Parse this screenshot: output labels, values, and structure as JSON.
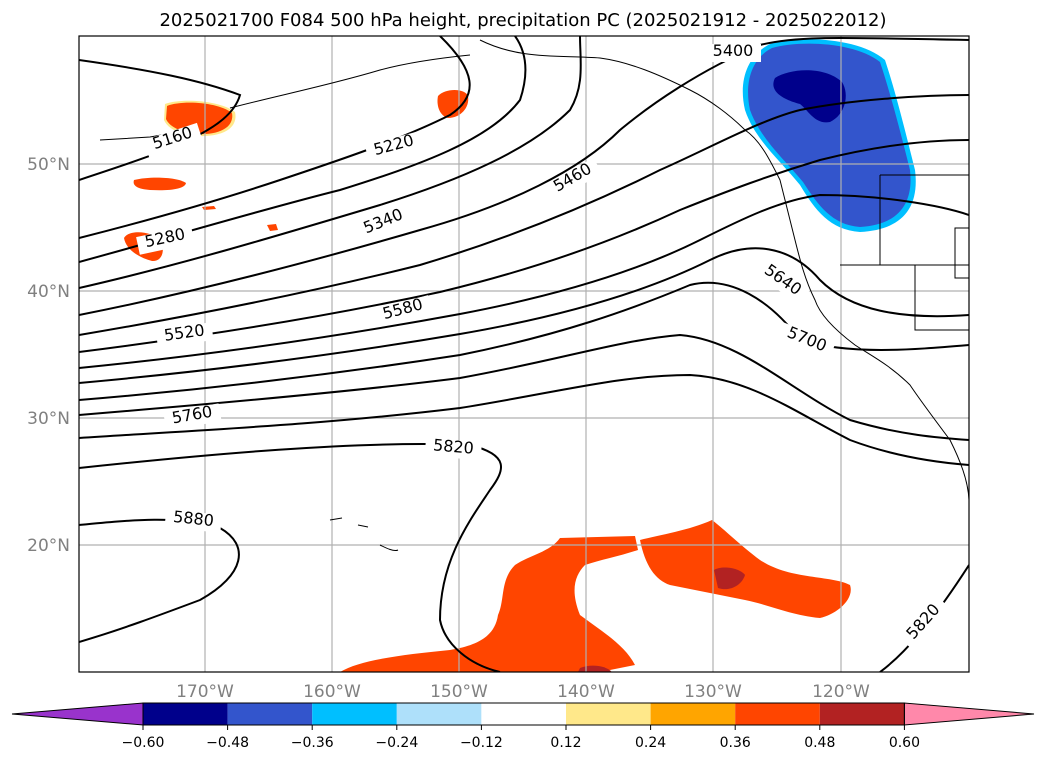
{
  "title": "2025021700 F084 500 hPa height, precipitation PC (2025021912 - 2025022012)",
  "lat_labels": [
    "50°N",
    "40°N",
    "30°N",
    "20°N"
  ],
  "lon_labels": [
    "170°W",
    "160°W",
    "150°W",
    "140°W",
    "130°W",
    "120°W"
  ],
  "contour_labels": [
    "5160",
    "5220",
    "5280",
    "5340",
    "5400",
    "5460",
    "5520",
    "5580",
    "5640",
    "5700",
    "5760",
    "5820",
    "5880",
    "5820"
  ],
  "colorbar": {
    "ticks": [
      "−0.60",
      "−0.48",
      "−0.36",
      "−0.24",
      "−0.12",
      "0.12",
      "0.24",
      "0.36",
      "0.48",
      "0.60"
    ],
    "colors": [
      "#9933cc",
      "#00008b",
      "#3355cc",
      "#00bfff",
      "#aee0fa",
      "#ffffff",
      "#ffe88a",
      "#ffa500",
      "#ff4500",
      "#b22222",
      "#ff88aa"
    ]
  },
  "colors": {
    "precip_positive": "#ff4500",
    "precip_negative": "#3355cc",
    "precip_strong_negative": "#00008b",
    "precip_strong_positive": "#b22222",
    "grid": "#b0b0b0",
    "coast": "#000000"
  }
}
